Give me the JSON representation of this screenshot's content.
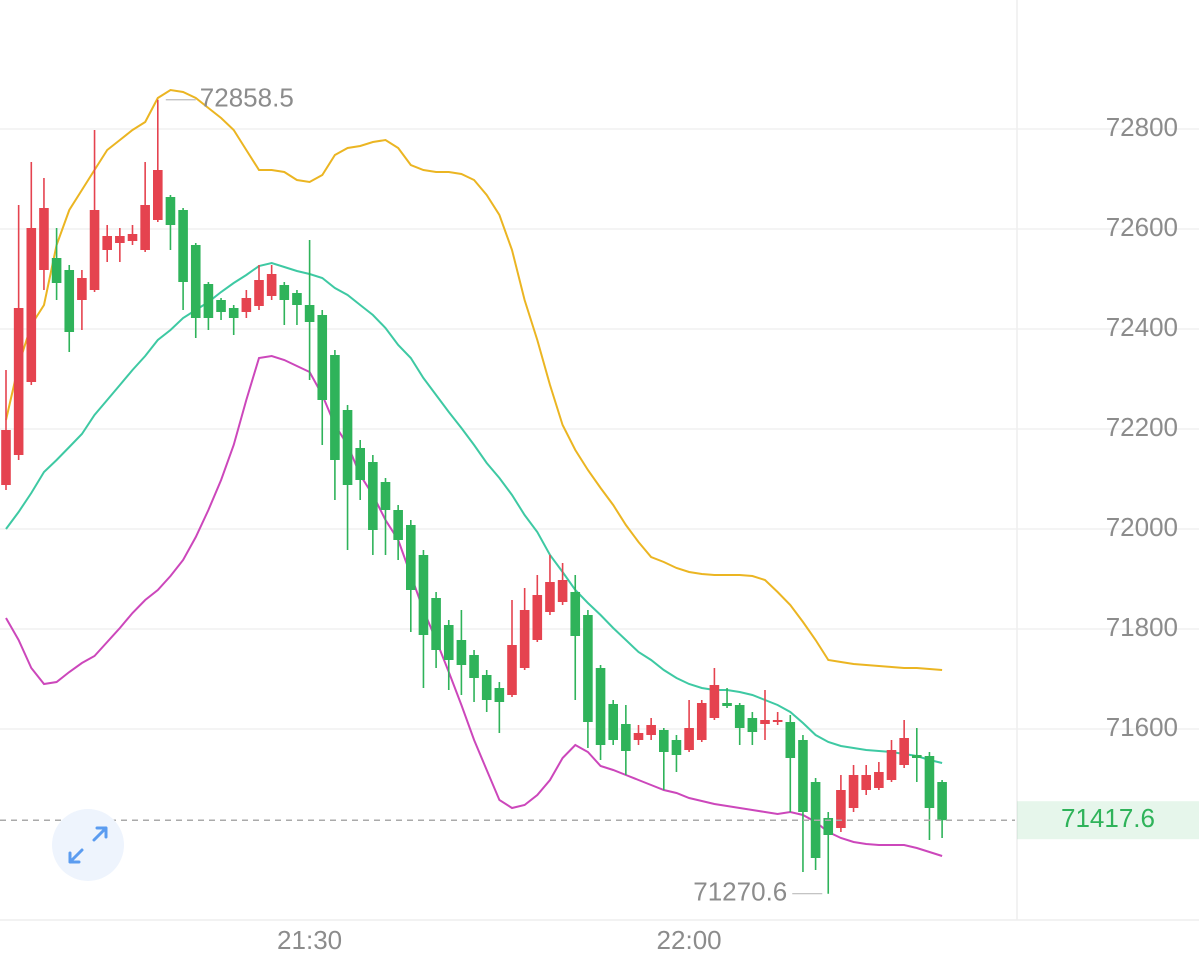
{
  "chart_data": {
    "type": "candlestick",
    "categories": [
      null,
      null,
      null,
      null,
      null,
      null,
      null,
      null,
      null,
      null,
      null,
      null,
      null,
      null,
      null,
      null,
      null,
      null,
      null,
      null,
      null,
      null,
      null,
      null,
      "21:30",
      null,
      null,
      null,
      null,
      null,
      null,
      null,
      null,
      null,
      null,
      null,
      null,
      null,
      null,
      null,
      null,
      null,
      null,
      null,
      null,
      null,
      null,
      null,
      null,
      null,
      null,
      null,
      null,
      null,
      "22:00",
      null,
      null,
      null,
      null,
      null,
      null,
      null,
      null,
      null,
      null,
      null,
      null,
      null,
      null,
      null,
      null,
      null,
      null,
      null,
      null
    ],
    "open": [
      72088,
      72148,
      72294,
      72518,
      72542,
      72518,
      72458,
      72478,
      72558,
      72572,
      72576,
      72558,
      72618,
      72664,
      72638,
      72568,
      72490,
      72458,
      72442,
      72434,
      72446,
      72466,
      72488,
      72472,
      72448,
      72428,
      72348,
      72238,
      72162,
      72134,
      72094,
      72038,
      72008,
      71948,
      71862,
      71808,
      71778,
      71748,
      71708,
      71682,
      71668,
      71722,
      71778,
      71834,
      71854,
      71874,
      71828,
      71722,
      71650,
      71610,
      71578,
      71588,
      71598,
      71578,
      71558,
      71578,
      71622,
      71652,
      71648,
      71622,
      71610,
      71614,
      71614,
      71578,
      71494,
      71422,
      71402,
      71442,
      71478,
      71482,
      71498,
      71528,
      71548,
      71546,
      71494
    ],
    "high": [
      72318,
      72648,
      72734,
      72702,
      72602,
      72528,
      72518,
      72798,
      72608,
      72602,
      72608,
      72734,
      72858.5,
      72668,
      72642,
      72572,
      72494,
      72462,
      72448,
      72478,
      72528,
      72528,
      72494,
      72478,
      72578,
      72438,
      72358,
      72248,
      72178,
      72148,
      72102,
      72048,
      72018,
      71958,
      71874,
      71818,
      71838,
      71758,
      71718,
      71694,
      71858,
      71882,
      71908,
      71948,
      71932,
      71908,
      71838,
      71728,
      71658,
      71648,
      71608,
      71622,
      71602,
      71588,
      71658,
      71658,
      71722,
      71682,
      71652,
      71634,
      71678,
      71634,
      71628,
      71588,
      71502,
      71434,
      71508,
      71528,
      71528,
      71534,
      71578,
      71618,
      71602,
      71554,
      71498
    ],
    "low": [
      72078,
      72138,
      72288,
      72478,
      72458,
      72354,
      72398,
      72474,
      72534,
      72534,
      72568,
      72554,
      72614,
      72558,
      72438,
      72382,
      72398,
      72418,
      72388,
      72422,
      72438,
      72458,
      72408,
      72408,
      72298,
      72168,
      72058,
      71958,
      72058,
      71948,
      71948,
      71938,
      71794,
      71682,
      71722,
      71678,
      71668,
      71654,
      71634,
      71592,
      71664,
      71718,
      71774,
      71828,
      71848,
      71658,
      71562,
      71538,
      71568,
      71508,
      71568,
      71578,
      71478,
      71514,
      71554,
      71574,
      71618,
      71642,
      71568,
      71568,
      71578,
      71608,
      71434,
      71314,
      71318,
      71270.6,
      71394,
      71434,
      71468,
      71478,
      71494,
      71522,
      71494,
      71378,
      71382
    ],
    "close": [
      72198,
      72442,
      72602,
      72642,
      72492,
      72394,
      72502,
      72638,
      72586,
      72586,
      72590,
      72648,
      72718,
      72608,
      72494,
      72422,
      72422,
      72434,
      72422,
      72462,
      72498,
      72510,
      72458,
      72448,
      72414,
      72258,
      72138,
      72088,
      72098,
      71998,
      72038,
      71978,
      71878,
      71788,
      71758,
      71738,
      71728,
      71702,
      71658,
      71654,
      71768,
      71838,
      71868,
      71894,
      71898,
      71786,
      71614,
      71568,
      71578,
      71556,
      71592,
      71608,
      71554,
      71548,
      71602,
      71652,
      71688,
      71646,
      71602,
      71594,
      71618,
      71618,
      71542,
      71434,
      71342,
      71388,
      71478,
      71508,
      71508,
      71514,
      71558,
      71582,
      71542,
      71442,
      71417.6
    ],
    "up_color": "#e5434f",
    "down_color": "#2fb35a",
    "bands": [
      {
        "color": "#ebb522",
        "values": [
          72218,
          72328,
          72408,
          72448,
          72568,
          72638,
          72678,
          72718,
          72758,
          72778,
          72798,
          72814,
          72862,
          72878,
          72874,
          72862,
          72842,
          72822,
          72798,
          72758,
          72718,
          72718,
          72714,
          72698,
          72694,
          72708,
          72748,
          72762,
          72766,
          72774,
          72778,
          72762,
          72728,
          72718,
          72714,
          72714,
          72710,
          72698,
          72668,
          72628,
          72558,
          72458,
          72378,
          72288,
          72208,
          72158,
          72118,
          72082,
          72048,
          72008,
          71974,
          71944,
          71934,
          71922,
          71914,
          71910,
          71908,
          71908,
          71908,
          71906,
          71898,
          71874,
          71848,
          71814,
          71778,
          71738,
          71734,
          71730,
          71728,
          71726,
          71724,
          71722,
          71722,
          71720,
          71718
        ]
      },
      {
        "color": "#3ec9a3",
        "values": [
          72000,
          72034,
          72072,
          72114,
          72138,
          72164,
          72190,
          72228,
          72258,
          72288,
          72318,
          72346,
          72378,
          72398,
          72422,
          72438,
          72454,
          72474,
          72492,
          72508,
          72526,
          72532,
          72524,
          72516,
          72510,
          72502,
          72482,
          72468,
          72448,
          72428,
          72402,
          72368,
          72342,
          72302,
          72268,
          72234,
          72202,
          72168,
          72132,
          72102,
          72068,
          72028,
          71994,
          71948,
          71914,
          71878,
          71852,
          71828,
          71802,
          71778,
          71754,
          71738,
          71718,
          71702,
          71690,
          71682,
          71678,
          71678,
          71674,
          71668,
          71658,
          71648,
          71634,
          71612,
          71588,
          71574,
          71566,
          71562,
          71558,
          71556,
          71554,
          71550,
          71546,
          71538,
          71532
        ]
      },
      {
        "color": "#cc47bb",
        "values": [
          71822,
          71778,
          71722,
          71690,
          71694,
          71714,
          71732,
          71746,
          71774,
          71802,
          71832,
          71858,
          71878,
          71906,
          71938,
          71984,
          72038,
          72098,
          72168,
          72258,
          72342,
          72346,
          72338,
          72326,
          72314,
          72268,
          72208,
          72168,
          72108,
          72068,
          72018,
          71978,
          71908,
          71838,
          71778,
          71714,
          71648,
          71578,
          71518,
          71458,
          71442,
          71448,
          71468,
          71498,
          71542,
          71568,
          71554,
          71526,
          71518,
          71508,
          71498,
          71488,
          71478,
          71472,
          71462,
          71456,
          71450,
          71446,
          71442,
          71438,
          71434,
          71430,
          71434,
          71428,
          71414,
          71394,
          71382,
          71374,
          71370,
          71368,
          71368,
          71368,
          71362,
          71354,
          71346
        ]
      }
    ],
    "ylim": [
      71218,
      73058
    ],
    "yticks": [
      71600,
      71800,
      72000,
      72200,
      72400,
      72600,
      72800
    ],
    "grid": true
  }
}
